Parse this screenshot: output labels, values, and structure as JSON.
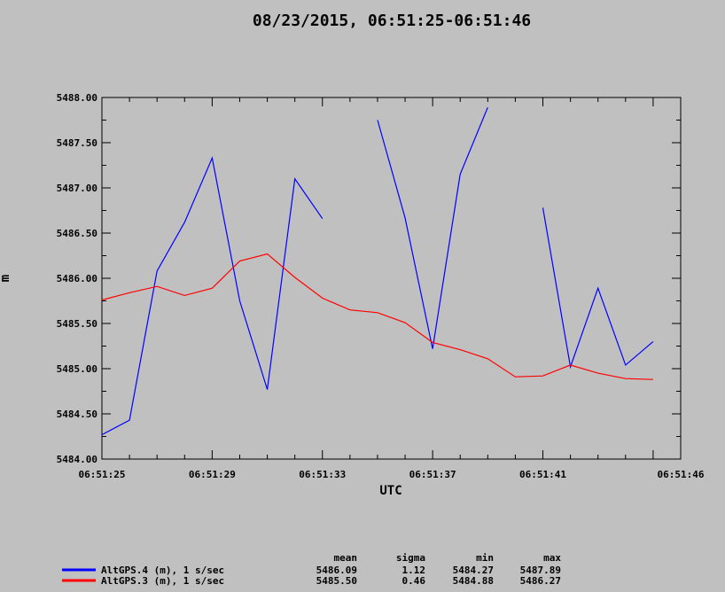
{
  "chart_data": {
    "type": "line",
    "title": "08/23/2015, 06:51:25-06:51:46",
    "xlabel": "UTC",
    "ylabel": "m",
    "xlim": [
      0,
      21
    ],
    "ylim": [
      5484.0,
      5488.0
    ],
    "grid": false,
    "x_tick_labels": [
      "06:51:25",
      "06:51:29",
      "06:51:33",
      "06:51:37",
      "06:51:41",
      "06:51:46"
    ],
    "x_tick_values": [
      0,
      4,
      8,
      12,
      16,
      20
    ],
    "y_tick_labels": [
      "5484.00",
      "5484.50",
      "5485.00",
      "5485.50",
      "5486.00",
      "5486.50",
      "5487.00",
      "5487.50",
      "5488.00"
    ],
    "y_tick_values": [
      5484.0,
      5484.5,
      5485.0,
      5485.5,
      5486.0,
      5486.5,
      5487.0,
      5487.5,
      5488.0
    ],
    "x": [
      0,
      1,
      2,
      3,
      4,
      5,
      6,
      7,
      8,
      9,
      10,
      11,
      12,
      13,
      14,
      15,
      16,
      17,
      18,
      19,
      20
    ],
    "series": [
      {
        "name": "AltGPS.4 (m), 1 s/sec",
        "color": "#0000ff",
        "values": [
          5484.27,
          5484.43,
          5486.08,
          5486.62,
          5487.33,
          5485.75,
          5484.77,
          5487.1,
          5486.66,
          null,
          5487.75,
          5486.67,
          5485.22,
          5487.15,
          5487.89,
          null,
          5486.78,
          5485.02,
          5485.89,
          5485.04,
          5485.3
        ],
        "stats": {
          "mean": "5486.09",
          "sigma": "1.12",
          "min": "5484.27",
          "max": "5487.89"
        }
      },
      {
        "name": "AltGPS.3 (m), 1 s/sec",
        "color": "#ff0000",
        "values": [
          5485.76,
          5485.84,
          5485.91,
          5485.81,
          5485.89,
          5486.19,
          5486.27,
          5486.01,
          5485.78,
          5485.65,
          5485.62,
          5485.51,
          5485.29,
          5485.21,
          5485.11,
          5484.91,
          5484.92,
          5485.04,
          5484.95,
          5484.89,
          5484.88
        ],
        "stats": {
          "mean": "5485.50",
          "sigma": "0.46",
          "min": "5484.88",
          "max": "5486.27"
        }
      }
    ],
    "stats_headers": [
      "mean",
      "sigma",
      "min",
      "max"
    ]
  }
}
